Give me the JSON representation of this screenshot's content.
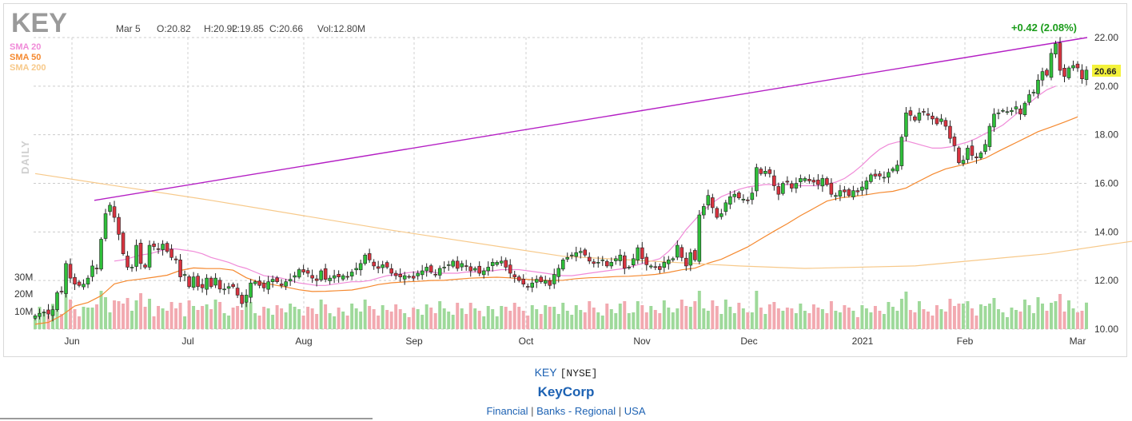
{
  "header": {
    "ticker": "KEY",
    "date": "Mar 5",
    "open": "O:20.82",
    "high": "H:20.92",
    "low": "L:19.85",
    "close": "C:20.66",
    "volume": "Vol:12.80M",
    "change": "+0.42 (2.08%)",
    "period": "DAILY"
  },
  "legend": [
    {
      "label": "SMA 20",
      "color": "#f08ad8"
    },
    {
      "label": "SMA 50",
      "color": "#f5892f"
    },
    {
      "label": "SMA 200",
      "color": "#f7c98a"
    }
  ],
  "footer": {
    "symbol": "KEY",
    "exchange": "[NYSE]",
    "company": "KeyCorp",
    "sector": "Financial",
    "industry": "Banks - Regional",
    "country": "USA",
    "separator": "|"
  },
  "chart_data": {
    "type": "candlestick",
    "ylim": [
      10,
      22
    ],
    "y_ticks": [
      "22.00",
      "20.00",
      "18.00",
      "16.00",
      "14.00",
      "12.00",
      "10.00"
    ],
    "x_ticks": [
      "Jun",
      "Jul",
      "Aug",
      "Sep",
      "Oct",
      "Nov",
      "Dec",
      "2021",
      "Feb",
      "Mar"
    ],
    "volume_ticks": [
      "30M",
      "20M",
      "10M"
    ],
    "last_price": "20.66",
    "trendline": {
      "from": {
        "date": "Jun 8",
        "value": 15.3
      },
      "to": {
        "date": "Mar 8",
        "value": 22.0
      }
    },
    "closes": [
      10.55,
      10.65,
      10.7,
      10.62,
      10.8,
      11.5,
      11.55,
      12.7,
      12.1,
      11.85,
      11.8,
      11.85,
      12.1,
      12.6,
      12.5,
      13.7,
      14.75,
      15.1,
      14.6,
      13.9,
      13.1,
      12.55,
      12.55,
      13.45,
      12.7,
      12.55,
      13.45,
      13.4,
      13.3,
      13.5,
      13.2,
      12.95,
      12.85,
      12.15,
      12.25,
      11.75,
      12.15,
      11.75,
      11.7,
      12.1,
      11.75,
      12.1,
      11.65,
      11.65,
      11.75,
      11.75,
      11.4,
      11.05,
      11.4,
      11.9,
      11.95,
      11.8,
      11.7,
      11.95,
      12.05,
      11.95,
      11.8,
      11.95,
      12.05,
      12.2,
      12.45,
      12.35,
      12.3,
      12.1,
      12.0,
      12.4,
      12.05,
      12.1,
      12.2,
      12.15,
      12.2,
      12.15,
      12.35,
      12.5,
      12.7,
      13.05,
      12.85,
      12.6,
      12.5,
      12.65,
      12.55,
      12.3,
      12.2,
      12.15,
      12.2,
      12.15,
      12.1,
      12.3,
      12.4,
      12.55,
      12.35,
      12.25,
      12.5,
      12.55,
      12.65,
      12.8,
      12.5,
      12.7,
      12.6,
      12.4,
      12.5,
      12.3,
      12.4,
      12.55,
      12.75,
      12.75,
      12.8,
      12.55,
      12.3,
      12.15,
      12.0,
      11.85,
      11.75,
      11.9,
      12.05,
      11.95,
      12.0,
      11.8,
      12.25,
      12.5,
      12.85,
      12.95,
      13.05,
      13.15,
      13.2,
      13.05,
      12.8,
      12.7,
      12.75,
      12.85,
      12.6,
      12.75,
      12.9,
      13.05,
      12.5,
      12.55,
      12.9,
      13.35,
      12.9,
      12.65,
      12.6,
      12.55,
      12.45,
      12.75,
      12.85,
      12.9,
      13.45,
      12.95,
      12.6,
      13.15,
      12.85,
      14.7,
      15.05,
      15.5,
      15.0,
      14.6,
      14.75,
      15.2,
      15.45,
      15.55,
      15.4,
      15.35,
      15.3,
      15.6,
      16.65,
      16.4,
      16.5,
      16.4,
      15.9,
      15.55,
      16.0,
      16.05,
      15.8,
      16.0,
      16.2,
      16.2,
      16.1,
      16.05,
      15.95,
      16.2,
      15.95,
      15.55,
      15.5,
      15.7,
      15.65,
      15.5,
      15.7,
      15.65,
      15.85,
      16.1,
      16.35,
      16.3,
      16.3,
      16.25,
      16.45,
      16.6,
      16.75,
      17.9,
      18.9,
      18.8,
      18.6,
      18.9,
      18.95,
      18.8,
      18.65,
      18.45,
      18.65,
      18.35,
      17.85,
      17.55,
      16.85,
      16.95,
      17.45,
      17.15,
      17.05,
      17.25,
      17.6,
      18.35,
      18.85,
      18.9,
      19.0,
      18.95,
      19.0,
      19.15,
      18.85,
      19.3,
      19.65,
      19.75,
      20.25,
      20.6,
      20.45,
      21.35,
      21.75,
      20.65,
      20.4,
      20.75,
      20.85,
      20.75,
      20.3,
      20.66
    ],
    "sma20": [
      12.8,
      12.85,
      12.95,
      13.05,
      13.1,
      13.2,
      13.3,
      13.3,
      13.25,
      13.2,
      13.1,
      12.95,
      12.85,
      12.75,
      12.6,
      12.5,
      12.35,
      12.2,
      12.15,
      12.1,
      12.0,
      11.9,
      11.85,
      11.8,
      11.8,
      11.85,
      11.9,
      11.95,
      11.95,
      12.0,
      12.1,
      12.2,
      12.25,
      12.3,
      12.35,
      12.35,
      12.35,
      12.3,
      12.3,
      12.3,
      12.35,
      12.35,
      12.4,
      12.4,
      12.45,
      12.45,
      12.45,
      12.4,
      12.35,
      12.3,
      12.25,
      12.2,
      12.2,
      12.25,
      12.3,
      12.35,
      12.4,
      12.45,
      12.5,
      12.6,
      12.7,
      12.8,
      12.9,
      13.2,
      13.6,
      14.1,
      14.5,
      14.9,
      15.2,
      15.45,
      15.6,
      15.75,
      15.85,
      15.9,
      15.95,
      15.95,
      15.95,
      15.95,
      15.9,
      15.9,
      15.9,
      15.95,
      16.05,
      16.2,
      16.45,
      16.75,
      17.1,
      17.4,
      17.6,
      17.7,
      17.75,
      17.65,
      17.55,
      17.45,
      17.45,
      17.5,
      17.6,
      17.7,
      17.85,
      18.05,
      18.2,
      18.4,
      18.7,
      19.0,
      19.3,
      19.6,
      19.85,
      20.0
    ]
  }
}
